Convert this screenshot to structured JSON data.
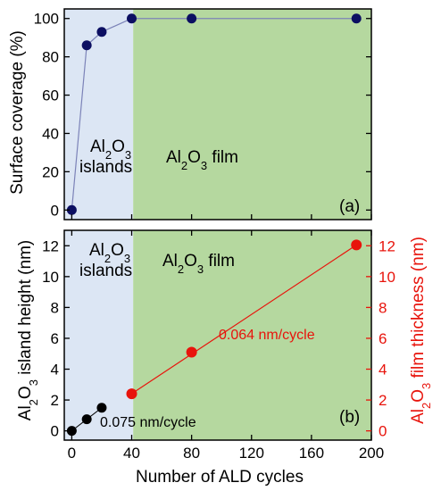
{
  "colors": {
    "islands_region": "#dce6f4",
    "film_region": "#b5d89f",
    "coverage_marker": "#0c0f62",
    "coverage_line": "#7c83b8",
    "height_marker": "#000000",
    "thickness_marker": "#e8140c",
    "thickness_line": "#e8140c"
  },
  "chart_data": [
    {
      "type": "scatter",
      "panel_label": "(a)",
      "ylabel": "Surface coverage (%)",
      "ylim": [
        -5,
        105
      ],
      "yticks": [
        "0",
        "20",
        "40",
        "60",
        "80",
        "100"
      ],
      "xlim": [
        -5,
        200
      ],
      "islands_boundary_x": 41,
      "regions": {
        "islands": {
          "prefix": "Al",
          "sub1": "2",
          "mid": "O",
          "sub2": "3",
          "line2": "islands"
        },
        "film": {
          "prefix": "Al",
          "sub1": "2",
          "mid": "O",
          "sub2": "3",
          "suffix": " film"
        }
      },
      "series": [
        {
          "x": [
            0,
            10,
            20,
            40,
            80,
            190
          ],
          "y": [
            0,
            86,
            93,
            100,
            100,
            100
          ]
        }
      ]
    },
    {
      "type": "scatter",
      "panel_label": "(b)",
      "xlabel": "Number of ALD cycles",
      "xlim": [
        -5,
        200
      ],
      "xticks": [
        "0",
        "40",
        "80",
        "120",
        "160",
        "200"
      ],
      "ylim": [
        -0.6,
        13
      ],
      "yticks": [
        "0",
        "2",
        "4",
        "6",
        "8",
        "10",
        "12"
      ],
      "islands_boundary_x": 41,
      "ylabel_left": {
        "prefix": "Al",
        "sub1": "2",
        "mid": "O",
        "sub2": "3",
        "suffix": " island height (nm)"
      },
      "ylabel_right": {
        "prefix": "Al",
        "sub1": "2",
        "mid": "O",
        "sub2": "3",
        "suffix": " film thickness (nm)"
      },
      "regions": {
        "islands": {
          "prefix": "Al",
          "sub1": "2",
          "mid": "O",
          "sub2": "3",
          "line2": "islands"
        },
        "film": {
          "prefix": "Al",
          "sub1": "2",
          "mid": "O",
          "sub2": "3",
          "suffix": " film"
        }
      },
      "annotations": {
        "islands_rate": "0.075 nm/cycle",
        "film_rate": "0.064 nm/cycle"
      },
      "series": [
        {
          "axis": "left",
          "x": [
            0,
            10,
            20
          ],
          "y": [
            0,
            0.75,
            1.5
          ]
        },
        {
          "axis": "right",
          "x": [
            40,
            80,
            190
          ],
          "y": [
            2.4,
            5.1,
            12.05
          ],
          "fit": {
            "x": [
              38,
              190
            ],
            "y": [
              2.28,
              12.05
            ]
          }
        }
      ]
    }
  ]
}
